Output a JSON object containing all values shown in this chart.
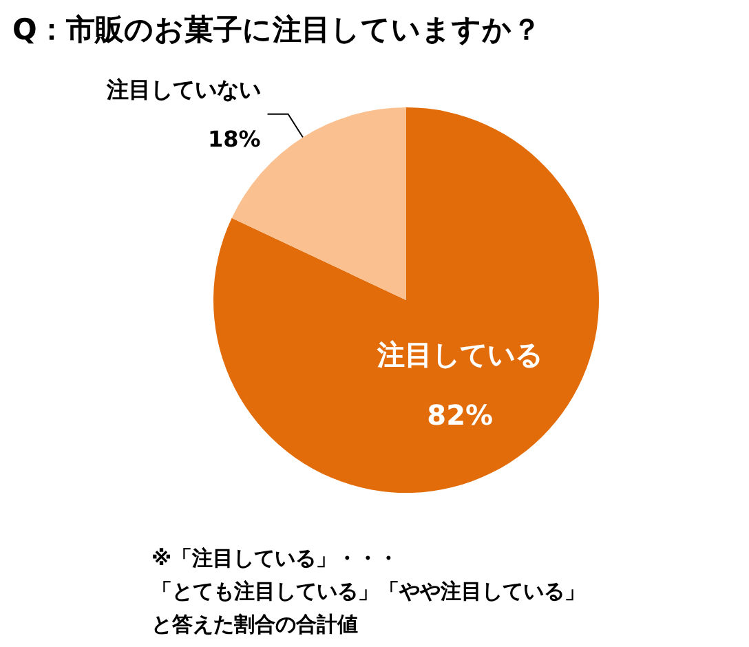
{
  "chart_data": {
    "type": "pie",
    "title": "Q：市販のお菓子に注目していますか？",
    "categories": [
      "注目している",
      "注目していない"
    ],
    "values": [
      82,
      18
    ],
    "colors": [
      "#e36c0a",
      "#fac090"
    ],
    "value_labels": [
      "82%",
      "18%"
    ],
    "annotations": [
      "※「注目している」・・・",
      "「とても注目している」「やや注目している」",
      "と答えた割合の合計値"
    ]
  }
}
